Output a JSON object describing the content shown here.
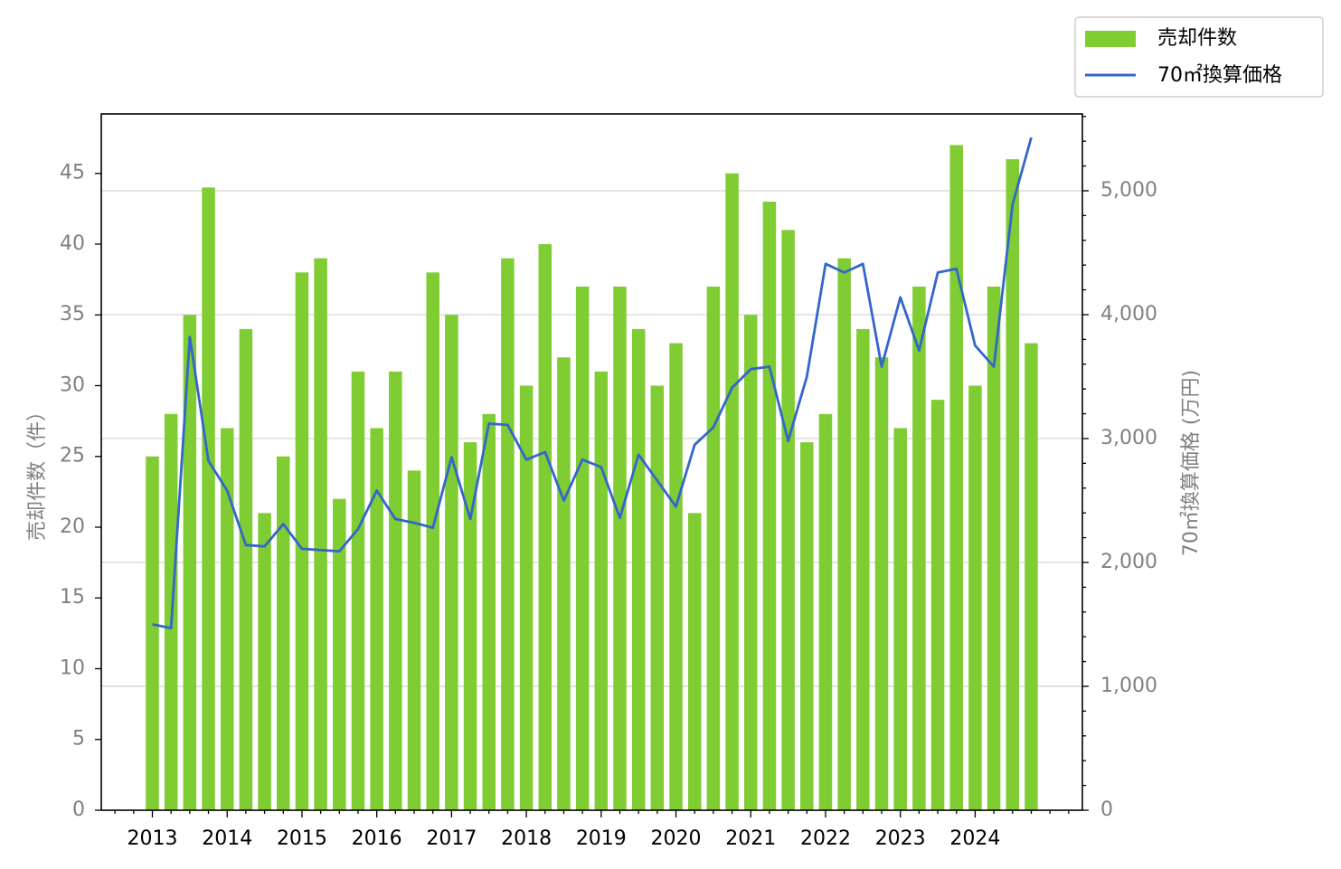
{
  "chart_data": {
    "type": "bar+line",
    "x_labels": [
      "2013",
      "2014",
      "2015",
      "2016",
      "2017",
      "2018",
      "2019",
      "2020",
      "2021",
      "2022",
      "2023",
      "2024"
    ],
    "series": [
      {
        "name": "売却件数",
        "type": "bar",
        "axis": "left",
        "color": "#7fcc33",
        "values": [
          25,
          28,
          35,
          44,
          27,
          34,
          21,
          25,
          38,
          39,
          22,
          31,
          27,
          31,
          24,
          38,
          35,
          26,
          28,
          39,
          30,
          40,
          32,
          37,
          31,
          37,
          34,
          30,
          33,
          21,
          37,
          45,
          35,
          43,
          41,
          26,
          28,
          39,
          34,
          32,
          27,
          37,
          29,
          47,
          30,
          37,
          46,
          33
        ]
      },
      {
        "name": "70㎡換算価格",
        "type": "line",
        "axis": "right",
        "color": "#3366cc",
        "values": [
          1500,
          1470,
          3820,
          2820,
          2580,
          2140,
          2130,
          2310,
          2110,
          2100,
          2090,
          2270,
          2580,
          2350,
          2320,
          2280,
          2850,
          2350,
          3120,
          3110,
          2830,
          2890,
          2500,
          2830,
          2770,
          2360,
          2870,
          2660,
          2450,
          2950,
          3090,
          3410,
          3560,
          3580,
          2980,
          3500,
          4410,
          4340,
          4410,
          3580,
          4140,
          3710,
          4340,
          4370,
          3750,
          3580,
          4890,
          5430
        ]
      }
    ],
    "left_axis": {
      "label": "売却件数（件）",
      "ticks": [
        "0",
        "5",
        "10",
        "15",
        "20",
        "25",
        "30",
        "35",
        "40",
        "45"
      ],
      "ylim": [
        0,
        49.2
      ]
    },
    "right_axis": {
      "label": "70㎡換算価格 (万円)",
      "ticks": [
        "0",
        "1,000",
        "2,000",
        "3,000",
        "4,000",
        "5,000"
      ],
      "ylim": [
        0,
        5620
      ]
    },
    "grid": "horizontal, right axis",
    "legend": "top-right outside"
  }
}
